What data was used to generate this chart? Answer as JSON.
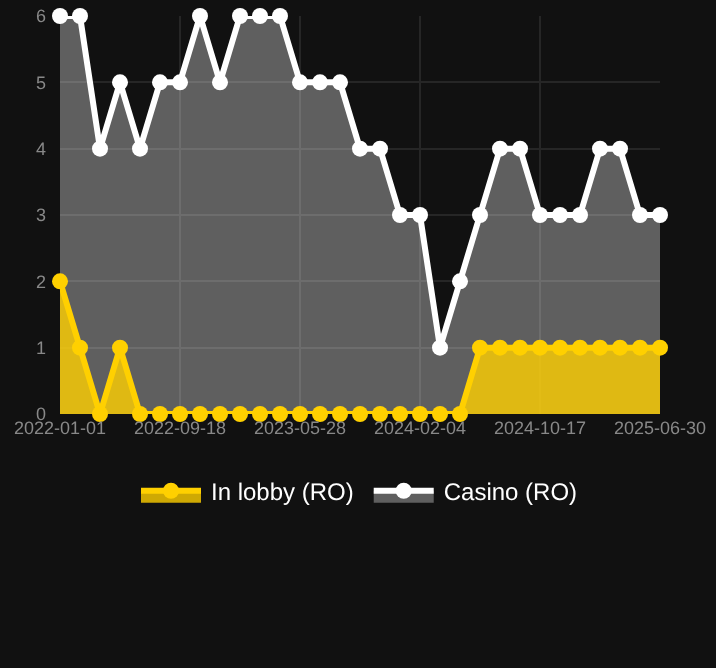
{
  "chart_data": {
    "type": "area",
    "categories": [
      "2022-01-01",
      null,
      null,
      null,
      null,
      null,
      "2022-09-18",
      null,
      null,
      null,
      null,
      null,
      "2023-05-28",
      null,
      null,
      null,
      null,
      null,
      "2024-02-04",
      null,
      null,
      null,
      null,
      null,
      "2024-10-17",
      null,
      null,
      null,
      null,
      null,
      "2025-06-30"
    ],
    "series": [
      {
        "name": "In lobby (RO)",
        "color": "#ffd000",
        "values": [
          2,
          1,
          0,
          1,
          0,
          0,
          0,
          0,
          0,
          0,
          0,
          0,
          0,
          0,
          0,
          0,
          0,
          0,
          0,
          0,
          0,
          1,
          1,
          1,
          1,
          1,
          1,
          1,
          1,
          1,
          1
        ]
      },
      {
        "name": "Casino (RO)",
        "color": "#ffffff",
        "values": [
          6,
          6,
          4,
          5,
          4,
          5,
          5,
          6,
          5,
          6,
          6,
          6,
          5,
          5,
          5,
          4,
          4,
          3,
          3,
          1,
          2,
          3,
          4,
          4,
          3,
          3,
          3,
          4,
          4,
          3,
          3
        ]
      }
    ],
    "ylim": [
      0,
      6
    ],
    "yticks": [
      0,
      1,
      2,
      3,
      4,
      5,
      6
    ],
    "grid": true,
    "legend": "bottom",
    "marker": "circle",
    "line_style": "solid"
  }
}
